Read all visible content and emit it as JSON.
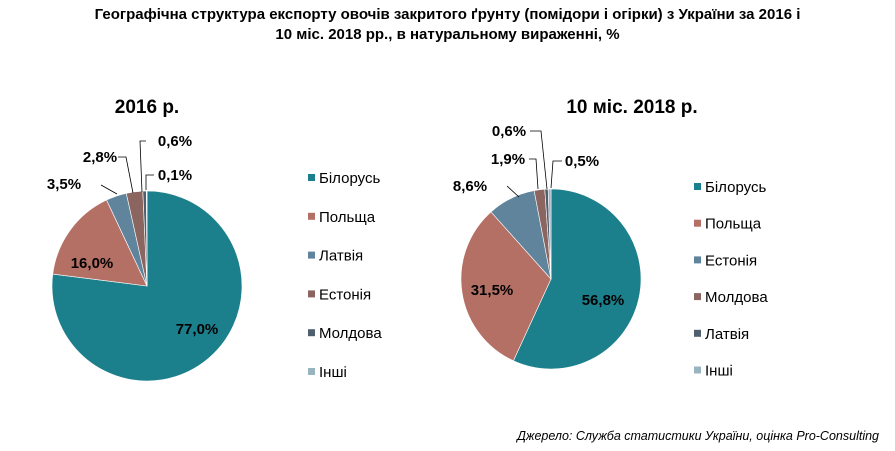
{
  "title": {
    "line1": "Географічна структура експорту овочів закритого ґрунту (помідори і огірки) з України за 2016 і",
    "line2": "10 міс. 2018 рр., в натуральному вираженні, %"
  },
  "source": "Джерело: Служба статистики України, оцінка Pro-Consulting",
  "chart_data": [
    {
      "type": "pie",
      "title": "2016 р.",
      "categories": [
        "Білорусь",
        "Польща",
        "Латвія",
        "Естонія",
        "Молдова",
        "Інші"
      ],
      "values": [
        77.0,
        16.0,
        3.5,
        2.8,
        0.6,
        0.1
      ],
      "labels": [
        "77,0%",
        "16,0%",
        "3,5%",
        "2,8%",
        "0,6%",
        "0,1%"
      ],
      "colors": [
        "#1C7F8C",
        "#B57066",
        "#5F849C",
        "#8B6661",
        "#4F5F6E",
        "#98B4C1"
      ],
      "legend": "right"
    },
    {
      "type": "pie",
      "title": "10 міс. 2018 р.",
      "categories": [
        "Білорусь",
        "Польща",
        "Естонія",
        "Молдова",
        "Латвія",
        "Інші"
      ],
      "values": [
        56.8,
        31.5,
        8.6,
        1.9,
        0.6,
        0.5
      ],
      "labels": [
        "56,8%",
        "31,5%",
        "8,6%",
        "1,9%",
        "0,6%",
        "0,5%"
      ],
      "colors": [
        "#1C7F8C",
        "#B57066",
        "#5F849C",
        "#8B6661",
        "#4F5F6E",
        "#98B4C1"
      ],
      "legend": "right"
    }
  ]
}
